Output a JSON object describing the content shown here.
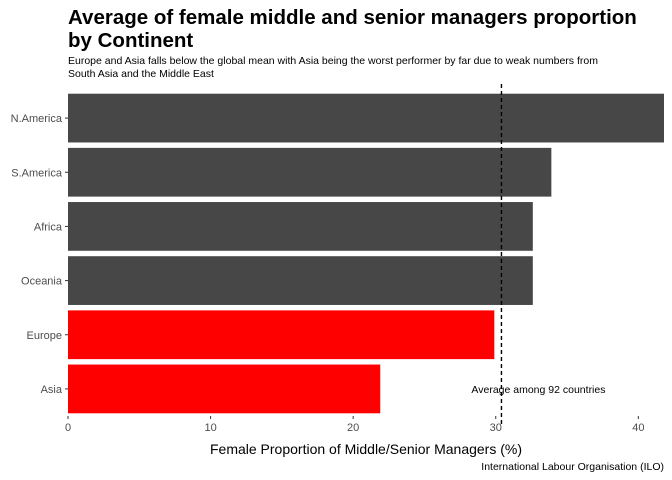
{
  "chart_data": {
    "type": "bar",
    "orientation": "horizontal",
    "title": "Average of female middle and senior managers proportion by Continent",
    "subtitle": "Europe and Asia falls below the global mean with Asia being the worst performer by far due to weak numbers from South Asia and the Middle East",
    "xlabel": "Female Proportion of Middle/Senior Managers (%)",
    "ylabel": "",
    "caption": "International Labour Organisation (ILO)",
    "categories": [
      "N.America",
      "S.America",
      "Africa",
      "Oceania",
      "Europe",
      "Asia"
    ],
    "values": [
      41.8,
      33.9,
      32.6,
      32.6,
      29.9,
      21.9
    ],
    "colors": [
      "#474747",
      "#474747",
      "#474747",
      "#474747",
      "#ff0000",
      "#ff0000"
    ],
    "xlim": [
      0,
      41.8
    ],
    "xticks": [
      0,
      10,
      20,
      30,
      40
    ],
    "reference_line": {
      "value": 30.4,
      "style": "dashed",
      "label": "Average among 92 countries"
    },
    "grid": false,
    "legend": "none"
  }
}
